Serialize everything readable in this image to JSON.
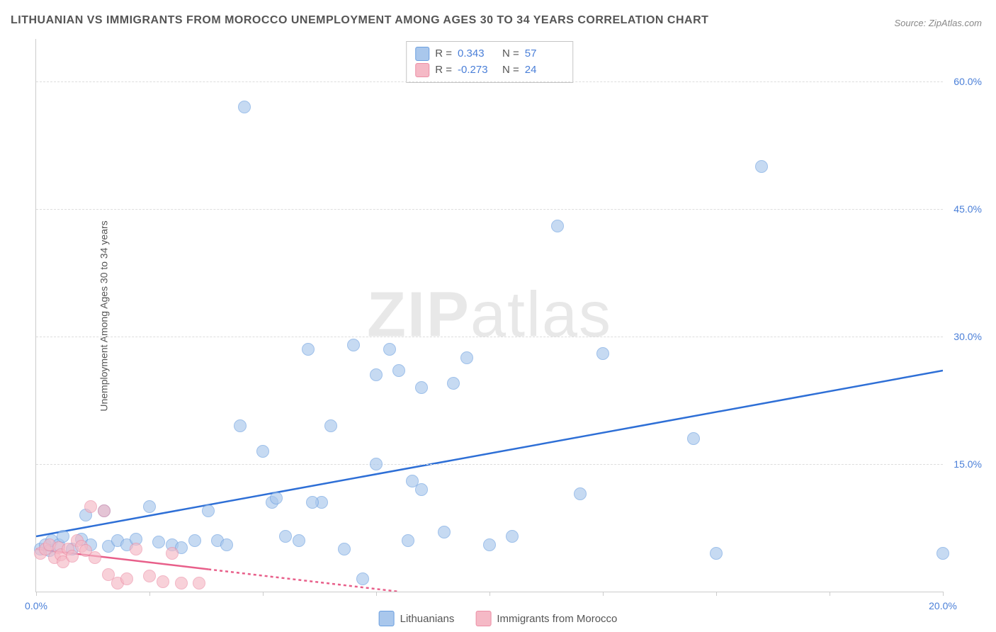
{
  "title": "LITHUANIAN VS IMMIGRANTS FROM MOROCCO UNEMPLOYMENT AMONG AGES 30 TO 34 YEARS CORRELATION CHART",
  "source": "Source: ZipAtlas.com",
  "ylabel": "Unemployment Among Ages 30 to 34 years",
  "watermark_a": "ZIP",
  "watermark_b": "atlas",
  "chart": {
    "type": "scatter-correlation",
    "background_color": "#ffffff",
    "grid_color": "#dddddd",
    "axis_color": "#cccccc",
    "tick_label_color": "#4a7fd8",
    "xlim": [
      0,
      20
    ],
    "ylim": [
      0,
      65
    ],
    "xtick_positions": [
      0,
      2.5,
      5,
      7.5,
      10,
      12.5,
      15,
      17.5,
      20
    ],
    "xtick_labels": {
      "0": "0.0%",
      "20": "20.0%"
    },
    "ytick_positions": [
      15,
      30,
      45,
      60
    ],
    "ytick_labels": {
      "15": "15.0%",
      "30": "30.0%",
      "45": "45.0%",
      "60": "60.0%"
    },
    "marker_radius": 8,
    "marker_opacity": 0.65,
    "trend_line_width": 2.5
  },
  "series": [
    {
      "name": "Lithuanians",
      "fill_color": "#a9c7ec",
      "stroke_color": "#6b9fe0",
      "trend_color": "#2e6fd6",
      "trend_dash": "none",
      "R": "0.343",
      "N": "57",
      "trend": {
        "x1": 0,
        "y1": 6.5,
        "x2": 20,
        "y2": 26.0
      },
      "points": [
        [
          0.1,
          5.0
        ],
        [
          0.2,
          5.5
        ],
        [
          0.3,
          4.8
        ],
        [
          0.35,
          6.0
        ],
        [
          0.5,
          5.5
        ],
        [
          0.6,
          6.5
        ],
        [
          0.8,
          5.0
        ],
        [
          1.0,
          6.2
        ],
        [
          1.1,
          9.0
        ],
        [
          1.2,
          5.5
        ],
        [
          1.5,
          9.5
        ],
        [
          1.6,
          5.3
        ],
        [
          1.8,
          6.0
        ],
        [
          2.0,
          5.5
        ],
        [
          2.2,
          6.2
        ],
        [
          2.5,
          10.0
        ],
        [
          2.7,
          5.8
        ],
        [
          3.0,
          5.5
        ],
        [
          3.5,
          6.0
        ],
        [
          3.8,
          9.5
        ],
        [
          4.0,
          6.0
        ],
        [
          4.2,
          5.5
        ],
        [
          4.5,
          19.5
        ],
        [
          4.6,
          57.0
        ],
        [
          5.0,
          16.5
        ],
        [
          5.2,
          10.5
        ],
        [
          5.3,
          11.0
        ],
        [
          5.5,
          6.5
        ],
        [
          5.8,
          6.0
        ],
        [
          6.0,
          28.5
        ],
        [
          6.3,
          10.5
        ],
        [
          6.5,
          19.5
        ],
        [
          6.8,
          5.0
        ],
        [
          7.0,
          29.0
        ],
        [
          7.2,
          1.5
        ],
        [
          7.5,
          25.5
        ],
        [
          7.5,
          15.0
        ],
        [
          7.8,
          28.5
        ],
        [
          8.0,
          26.0
        ],
        [
          8.2,
          6.0
        ],
        [
          8.3,
          13.0
        ],
        [
          8.5,
          24.0
        ],
        [
          8.5,
          12.0
        ],
        [
          9.0,
          7.0
        ],
        [
          9.2,
          24.5
        ],
        [
          9.5,
          27.5
        ],
        [
          10.0,
          5.5
        ],
        [
          10.5,
          6.5
        ],
        [
          11.5,
          43.0
        ],
        [
          12.0,
          11.5
        ],
        [
          12.5,
          28.0
        ],
        [
          14.5,
          18.0
        ],
        [
          15.0,
          4.5
        ],
        [
          16.0,
          50.0
        ],
        [
          20.0,
          4.5
        ],
        [
          6.1,
          10.5
        ],
        [
          3.2,
          5.2
        ]
      ]
    },
    {
      "name": "Immigrants from Morocco",
      "fill_color": "#f5b9c6",
      "stroke_color": "#ec8fa6",
      "trend_color": "#e85f8a",
      "trend_dash": "4 4",
      "R": "-0.273",
      "N": "24",
      "trend": {
        "x1": 0,
        "y1": 5.0,
        "x2": 8,
        "y2": 0.0
      },
      "trend_solid_until": 3.8,
      "points": [
        [
          0.1,
          4.5
        ],
        [
          0.2,
          5.0
        ],
        [
          0.3,
          5.5
        ],
        [
          0.4,
          4.0
        ],
        [
          0.5,
          5.2
        ],
        [
          0.55,
          4.3
        ],
        [
          0.6,
          3.5
        ],
        [
          0.7,
          5.0
        ],
        [
          0.8,
          4.2
        ],
        [
          0.9,
          6.0
        ],
        [
          1.0,
          5.3
        ],
        [
          1.1,
          4.8
        ],
        [
          1.2,
          10.0
        ],
        [
          1.3,
          4.0
        ],
        [
          1.5,
          9.5
        ],
        [
          1.6,
          2.0
        ],
        [
          1.8,
          1.0
        ],
        [
          2.0,
          1.5
        ],
        [
          2.2,
          5.0
        ],
        [
          2.5,
          1.8
        ],
        [
          2.8,
          1.2
        ],
        [
          3.0,
          4.5
        ],
        [
          3.2,
          1.0
        ],
        [
          3.6,
          1.0
        ]
      ]
    }
  ],
  "bottom_legend": [
    {
      "label": "Lithuanians",
      "fill": "#a9c7ec",
      "stroke": "#6b9fe0"
    },
    {
      "label": "Immigrants from Morocco",
      "fill": "#f5b9c6",
      "stroke": "#ec8fa6"
    }
  ]
}
